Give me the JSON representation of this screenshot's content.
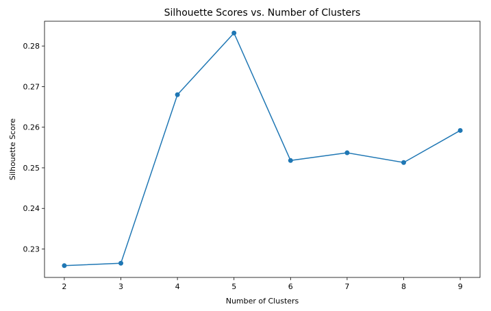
{
  "chart_data": {
    "type": "line",
    "title": "Silhouette Scores vs. Number of Clusters",
    "xlabel": "Number of Clusters",
    "ylabel": "Silhouette Score",
    "x": [
      2,
      3,
      4,
      5,
      6,
      7,
      8,
      9
    ],
    "series": [
      {
        "values": [
          0.2259,
          0.2265,
          0.268,
          0.2832,
          0.2518,
          0.2537,
          0.2513,
          0.2592
        ]
      }
    ],
    "xticks": [
      2,
      3,
      4,
      5,
      6,
      7,
      8,
      9
    ],
    "yticks": [
      0.23,
      0.24,
      0.25,
      0.26,
      0.27,
      0.28
    ],
    "xlim": [
      1.65,
      9.35
    ],
    "ylim": [
      0.223,
      0.2861
    ],
    "grid": false,
    "marker": "circle",
    "colors": {
      "series": "#1f77b4",
      "axes": "#000000"
    }
  }
}
